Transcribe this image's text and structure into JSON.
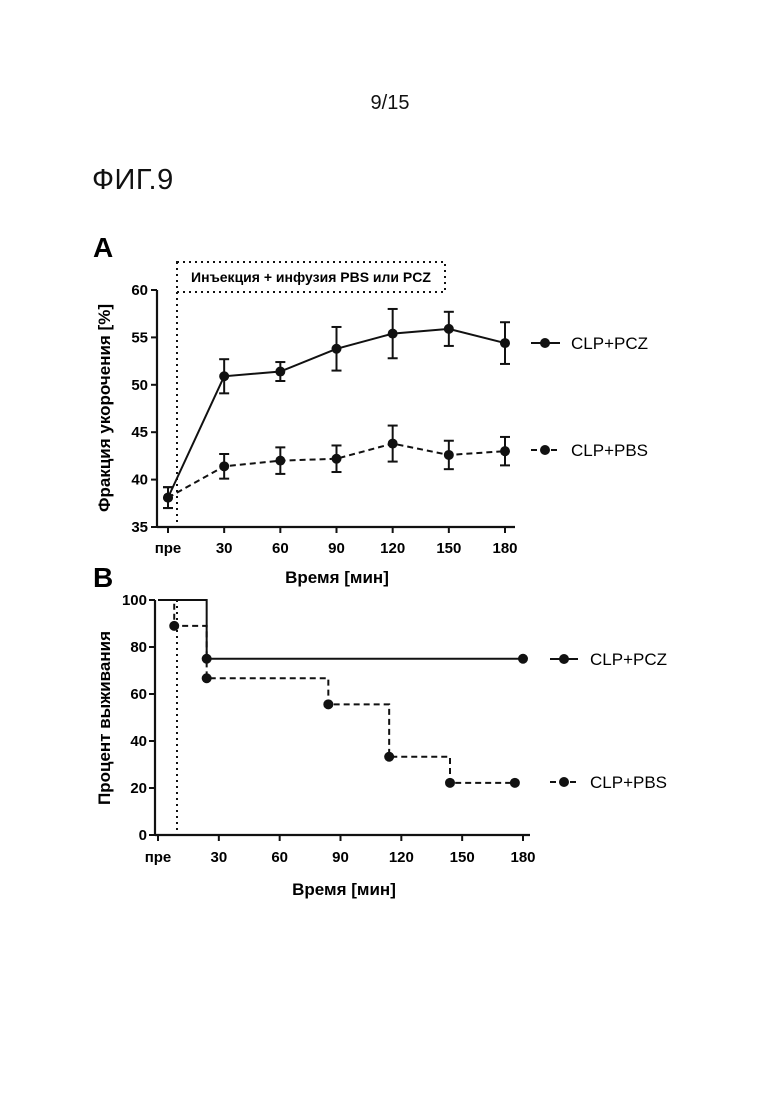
{
  "page": {
    "number": "9/15",
    "figure_title": "ФИГ.9"
  },
  "chart_data": [
    {
      "panel": "A",
      "type": "line",
      "annotation": "Инъекция + инфузия PBS или PCZ",
      "xlabel": "Время [мин]",
      "ylabel": "Фракция укорочения [%]",
      "ylim": [
        35,
        60
      ],
      "x": [
        0,
        30,
        60,
        90,
        120,
        150,
        180
      ],
      "x_tick_labels": [
        "пре",
        "30",
        "60",
        "90",
        "120",
        "150",
        "180"
      ],
      "y_ticks": [
        35,
        40,
        45,
        50,
        55,
        60
      ],
      "legend_placement": "right",
      "series": [
        {
          "name": "CLP+PCZ",
          "style": "solid",
          "values": [
            38.1,
            50.9,
            51.4,
            53.8,
            55.4,
            55.9,
            54.4
          ],
          "errors": [
            1.1,
            1.8,
            1.0,
            2.3,
            2.6,
            1.8,
            2.2
          ]
        },
        {
          "name": "CLP+PBS",
          "style": "dashed",
          "values": [
            38.1,
            41.4,
            42.0,
            42.2,
            43.8,
            42.6,
            43.0
          ],
          "errors": [
            1.1,
            1.3,
            1.4,
            1.4,
            1.9,
            1.5,
            1.5
          ]
        }
      ]
    },
    {
      "panel": "B",
      "type": "line",
      "subtype": "survival-step",
      "xlabel": "Время [мин]",
      "ylabel": "Процент выживания",
      "ylim": [
        0,
        100
      ],
      "x_tick_labels": [
        "пре",
        "30",
        "60",
        "90",
        "120",
        "150",
        "180"
      ],
      "y_ticks": [
        0,
        20,
        40,
        60,
        80,
        100
      ],
      "legend_placement": "right",
      "series": [
        {
          "name": "CLP+PCZ",
          "style": "solid",
          "steps": [
            [
              0,
              100
            ],
            [
              24,
              100
            ],
            [
              24,
              75
            ],
            [
              180,
              75
            ]
          ],
          "markers": [
            [
              24,
              75
            ],
            [
              180,
              75
            ]
          ]
        },
        {
          "name": "CLP+PBS",
          "style": "dashed",
          "steps": [
            [
              0,
              100
            ],
            [
              8,
              100
            ],
            [
              8,
              89
            ],
            [
              24,
              89
            ],
            [
              24,
              66.7
            ],
            [
              84,
              66.7
            ],
            [
              84,
              55.6
            ],
            [
              114,
              55.6
            ],
            [
              114,
              33.3
            ],
            [
              144,
              33.3
            ],
            [
              144,
              22.2
            ],
            [
              176,
              22.2
            ]
          ],
          "markers": [
            [
              8,
              89
            ],
            [
              24,
              66.7
            ],
            [
              84,
              55.6
            ],
            [
              114,
              33.3
            ],
            [
              144,
              22.2
            ],
            [
              176,
              22.2
            ]
          ]
        }
      ]
    }
  ]
}
